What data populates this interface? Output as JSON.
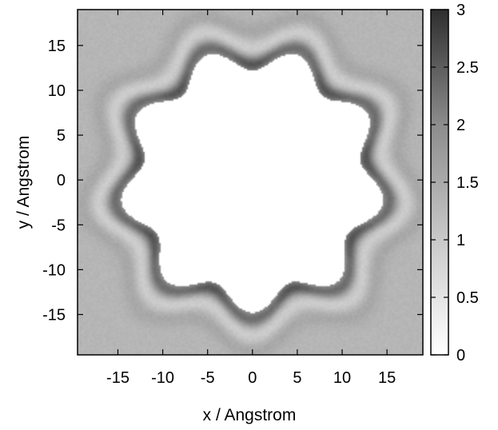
{
  "chart_data": {
    "type": "heatmap",
    "title": "",
    "xlabel": "x / Angstrom",
    "ylabel": "y / Angstrom",
    "xlim": [
      -19.5,
      19
    ],
    "ylim": [
      -19.5,
      19
    ],
    "x_ticks": [
      -15,
      -10,
      -5,
      0,
      5,
      10,
      15
    ],
    "y_ticks": [
      15,
      10,
      5,
      0,
      -5,
      -10,
      -15
    ],
    "colorbar": {
      "min": 0,
      "max": 3,
      "ticks": [
        3,
        2.5,
        2,
        1.5,
        1,
        0.5,
        0
      ],
      "colormap": "grayscale (white = 0, black = 3)"
    },
    "field": {
      "bulk_value": 1.0,
      "excluded_value": 0,
      "shape": "nine-lobed ring (cyclodextrin-like cavity) centered at origin",
      "excluded_region_radius": 13.5,
      "first_shell_value_peak": 2.0,
      "second_shell_radius": 17,
      "lobe_count": 9
    },
    "colors": {
      "background_gray": "#c8c8c8",
      "frame": "#000000"
    }
  }
}
